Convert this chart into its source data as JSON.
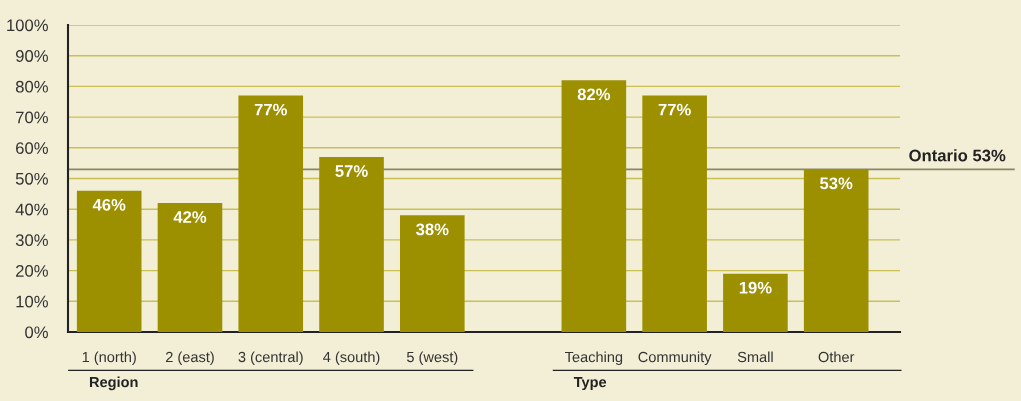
{
  "chart_data": {
    "type": "bar",
    "categories": [
      "1 (north)",
      "2 (east)",
      "3 (central)",
      "4 (south)",
      "5 (west)",
      null,
      "Teaching",
      "Community",
      "Small",
      "Other"
    ],
    "values": [
      46,
      42,
      77,
      57,
      38,
      null,
      82,
      77,
      19,
      53
    ],
    "value_labels": [
      "46%",
      "42%",
      "77%",
      "57%",
      "38%",
      null,
      "82%",
      "77%",
      "19%",
      "53%"
    ],
    "color": "#9c8f00",
    "ylim": [
      0,
      100
    ],
    "yticks": [
      {
        "value": 0,
        "label": "0%"
      },
      {
        "value": 10,
        "label": "10%"
      },
      {
        "value": 20,
        "label": "20%"
      },
      {
        "value": 30,
        "label": "30%"
      },
      {
        "value": 40,
        "label": "40%"
      },
      {
        "value": 50,
        "label": "50%"
      },
      {
        "value": 60,
        "label": "60%"
      },
      {
        "value": 70,
        "label": "70%"
      },
      {
        "value": 80,
        "label": "80%"
      },
      {
        "value": 90,
        "label": "90%"
      },
      {
        "value": 100,
        "label": "100%"
      }
    ],
    "grid": "y",
    "ref_lines": [
      {
        "axis": "y",
        "value": 53,
        "label": "Ontario 53%",
        "color": "#888866"
      }
    ],
    "annotations": [
      "Region",
      "Type"
    ]
  }
}
